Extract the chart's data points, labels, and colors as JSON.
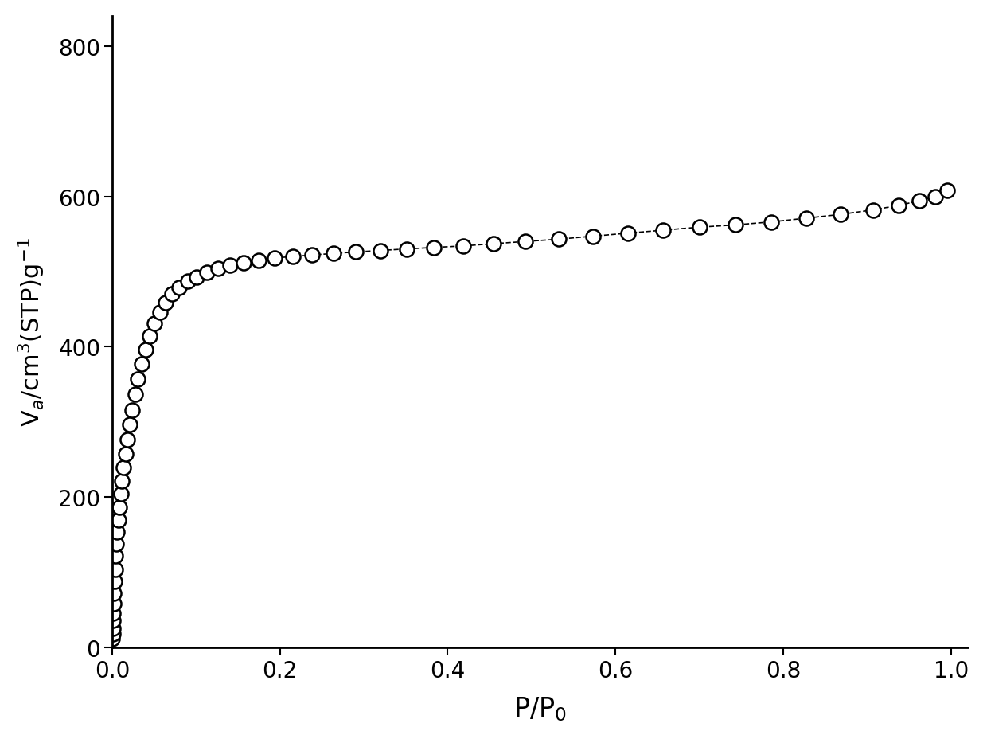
{
  "x": [
    0.00035,
    0.00055,
    0.0008,
    0.0011,
    0.00145,
    0.00185,
    0.0023,
    0.00285,
    0.0035,
    0.00425,
    0.0051,
    0.0061,
    0.00725,
    0.0086,
    0.0101,
    0.0118,
    0.0137,
    0.0158,
    0.0182,
    0.0209,
    0.0239,
    0.0272,
    0.0309,
    0.035,
    0.0396,
    0.0447,
    0.0503,
    0.0566,
    0.0636,
    0.0714,
    0.0801,
    0.0898,
    0.1006,
    0.1126,
    0.1259,
    0.1406,
    0.1568,
    0.1746,
    0.1941,
    0.2154,
    0.2386,
    0.2637,
    0.2907,
    0.3198,
    0.3508,
    0.3837,
    0.4184,
    0.4548,
    0.4928,
    0.5322,
    0.5729,
    0.6146,
    0.6571,
    0.7,
    0.743,
    0.7857,
    0.8276,
    0.8684,
    0.9072,
    0.938,
    0.962,
    0.981,
    0.995
  ],
  "y": [
    12,
    18,
    26,
    36,
    46,
    58,
    72,
    88,
    104,
    122,
    138,
    154,
    170,
    187,
    205,
    222,
    240,
    258,
    277,
    297,
    316,
    337,
    357,
    377,
    396,
    414,
    431,
    446,
    459,
    470,
    479,
    487,
    493,
    499,
    504,
    508,
    512,
    515,
    518,
    520,
    522,
    524,
    526,
    528,
    530,
    532,
    534,
    537,
    540,
    543,
    547,
    551,
    555,
    559,
    562,
    566,
    571,
    576,
    582,
    588,
    594,
    600,
    608
  ],
  "xlabel": "P/P$_0$",
  "ylabel": "V$_a$/cm$^3$(STP)g$^{-1}$",
  "xlim": [
    0.0,
    1.02
  ],
  "ylim": [
    0,
    840
  ],
  "yticks": [
    0,
    200,
    400,
    600,
    800
  ],
  "xticks": [
    0.0,
    0.2,
    0.4,
    0.6,
    0.8,
    1.0
  ],
  "marker_size": 13,
  "marker_color": "white",
  "marker_edge_color": "black",
  "line_color": "black",
  "line_style": "--",
  "background_color": "white",
  "axis_color": "black",
  "xlabel_fontsize": 24,
  "ylabel_fontsize": 22,
  "tick_fontsize": 20,
  "line_width": 1.2,
  "marker_edge_width": 1.8
}
